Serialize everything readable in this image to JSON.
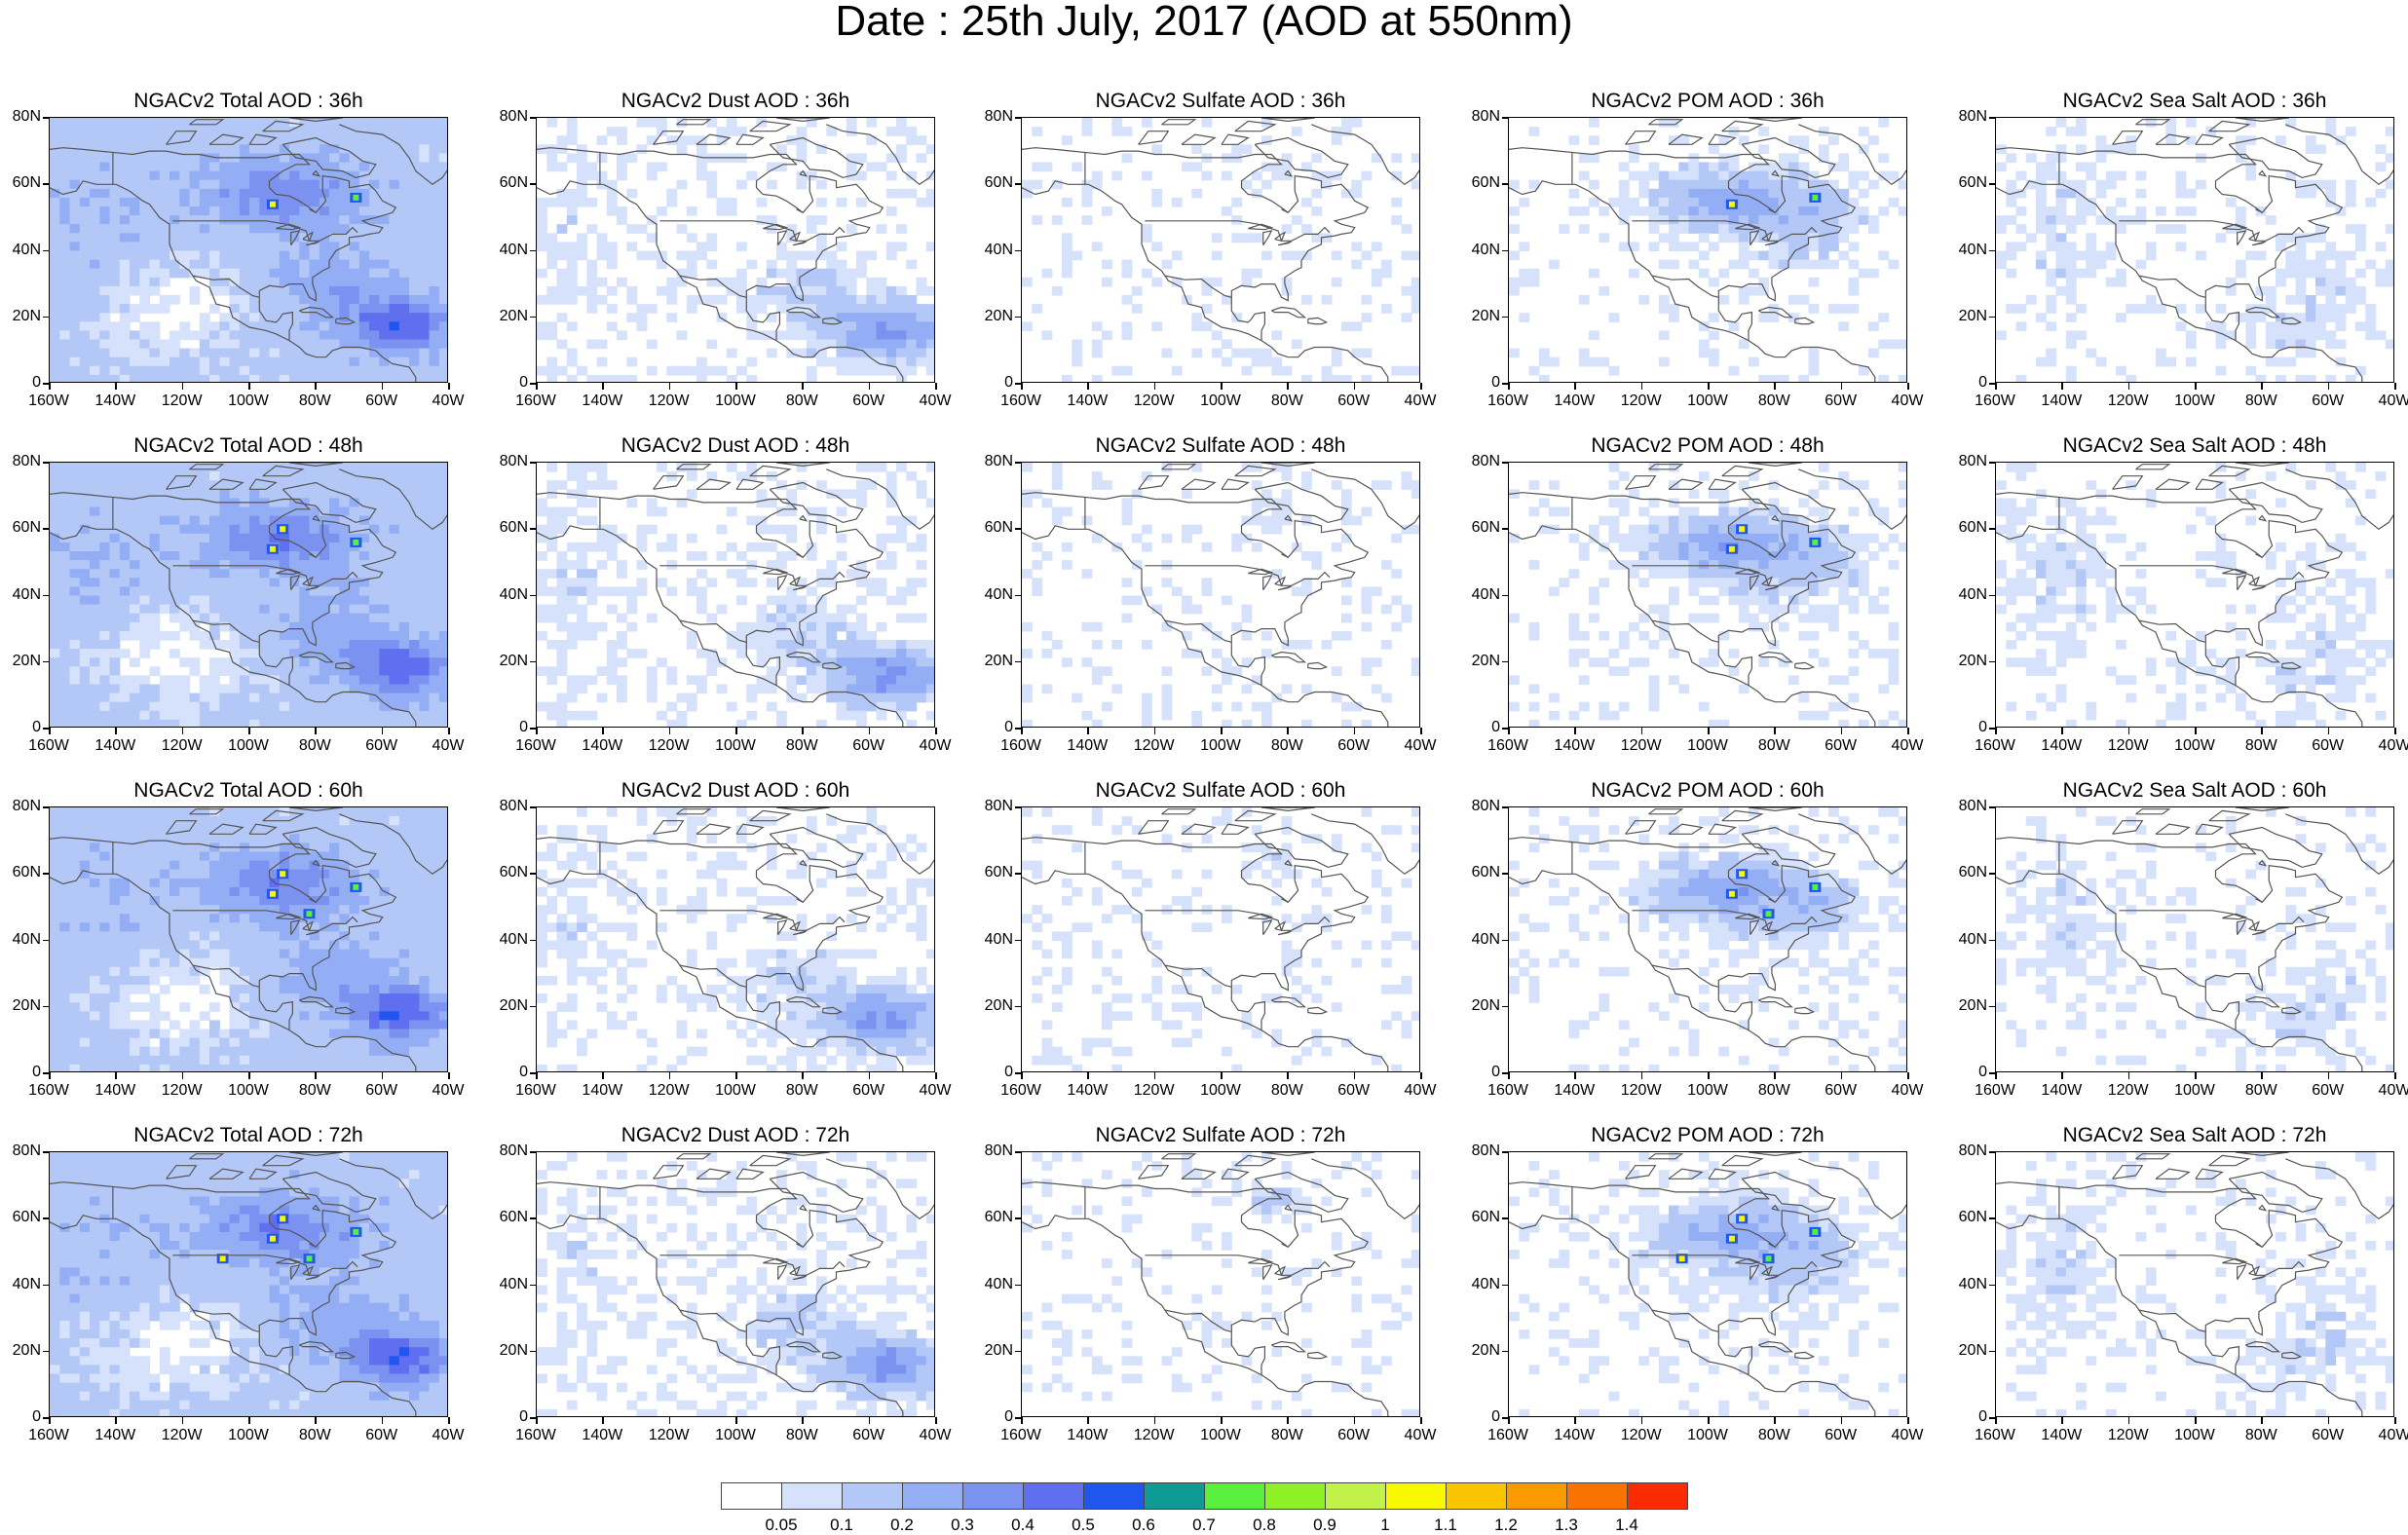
{
  "title": "Date : 25th July, 2017 (AOD at 550nm)",
  "map_panels": [
    [
      "NGACv2 Total AOD : 36h",
      "NGACv2 Dust AOD : 36h",
      "NGACv2 Sulfate AOD : 36h",
      "NGACv2 POM AOD : 36h",
      "NGACv2 Sea Salt AOD : 36h"
    ],
    [
      "NGACv2 Total AOD : 48h",
      "NGACv2 Dust AOD : 48h",
      "NGACv2 Sulfate AOD : 48h",
      "NGACv2 POM AOD : 48h",
      "NGACv2 Sea Salt AOD : 48h"
    ],
    [
      "NGACv2 Total AOD : 60h",
      "NGACv2 Dust AOD : 60h",
      "NGACv2 Sulfate AOD : 60h",
      "NGACv2 POM AOD : 60h",
      "NGACv2 Sea Salt AOD : 60h"
    ],
    [
      "NGACv2 Total AOD : 72h",
      "NGACv2 Dust AOD : 72h",
      "NGACv2 Sulfate AOD : 72h",
      "NGACv2 POM AOD : 72h",
      "NGACv2 Sea Salt  AOD : 72h"
    ]
  ],
  "lat_labels": [
    "80N",
    "60N",
    "40N",
    "20N",
    "0"
  ],
  "lon_labels": [
    "160W",
    "140W",
    "120W",
    "100W",
    "80W",
    "60W",
    "40W"
  ],
  "colorbar": {
    "colors": [
      "#ffffff",
      "#d6e2fb",
      "#b4c8f7",
      "#94aef5",
      "#7c92f0",
      "#5f6ff0",
      "#1f56f0",
      "#109a96",
      "#58f03c",
      "#8ef026",
      "#c2f24a",
      "#f8f800",
      "#fac400",
      "#fa9a00",
      "#fa7300",
      "#fa2b00"
    ],
    "labels": [
      "0.05",
      "0.1",
      "0.2",
      "0.3",
      "0.4",
      "0.5",
      "0.6",
      "0.7",
      "0.8",
      "0.9",
      "1",
      "1.1",
      "1.2",
      "1.3",
      "1.4"
    ]
  },
  "species": [
    "total",
    "dust",
    "sulfate",
    "pom",
    "seasalt"
  ]
}
